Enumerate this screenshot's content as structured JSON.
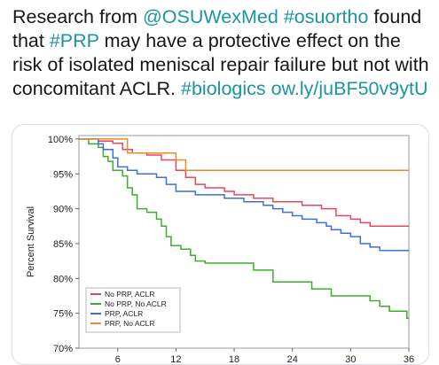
{
  "tweet": {
    "segments": [
      {
        "text": "Research from ",
        "type": "text"
      },
      {
        "text": "@OSUWexMed",
        "type": "mention"
      },
      {
        "text": " ",
        "type": "text"
      },
      {
        "text": "#osuortho",
        "type": "hashtag"
      },
      {
        "text": " found that ",
        "type": "text"
      },
      {
        "text": "#PRP",
        "type": "hashtag"
      },
      {
        "text": " may have a protective effect on the risk of isolated meniscal repair failure but not with concomitant ACLR. ",
        "type": "text"
      },
      {
        "text": "#biologics",
        "type": "hashtag"
      },
      {
        "text": " ",
        "type": "text"
      },
      {
        "text": "ow.ly/juBF50v9ytU",
        "type": "link"
      }
    ],
    "link_color": "#1b95a2"
  },
  "chart_data": {
    "type": "line",
    "title": "",
    "xlabel": "",
    "ylabel": "Percent Survival",
    "xlim": [
      2,
      36
    ],
    "ylim": [
      70,
      100.5
    ],
    "x_ticks": [
      6,
      12,
      18,
      24,
      30,
      36
    ],
    "y_ticks": [
      "70%",
      "75%",
      "80%",
      "85%",
      "90%",
      "95%",
      "100%"
    ],
    "y_tick_values": [
      70,
      75,
      80,
      85,
      90,
      95,
      100
    ],
    "grid": false,
    "legend_placement": "bottom-left",
    "series": [
      {
        "name": "No PRP, ACLR",
        "color": "#e8475a",
        "points": [
          [
            2,
            100
          ],
          [
            4,
            100
          ],
          [
            4,
            99.7
          ],
          [
            5.5,
            99.7
          ],
          [
            5.5,
            99.4
          ],
          [
            6.5,
            99.4
          ],
          [
            6.5,
            98.5
          ],
          [
            7.5,
            98.5
          ],
          [
            7.5,
            98
          ],
          [
            9,
            98
          ],
          [
            9,
            97.7
          ],
          [
            10.5,
            97.7
          ],
          [
            10.5,
            97
          ],
          [
            12,
            97
          ],
          [
            12,
            95.5
          ],
          [
            13,
            95.5
          ],
          [
            13,
            94.5
          ],
          [
            14,
            94.5
          ],
          [
            14,
            93.5
          ],
          [
            15,
            93.5
          ],
          [
            15,
            93
          ],
          [
            17,
            93
          ],
          [
            17,
            92.5
          ],
          [
            18,
            92.5
          ],
          [
            18,
            92
          ],
          [
            20,
            92
          ],
          [
            20,
            91.5
          ],
          [
            22,
            91.5
          ],
          [
            22,
            91
          ],
          [
            25,
            91
          ],
          [
            25,
            90.5
          ],
          [
            27,
            90.5
          ],
          [
            27,
            90
          ],
          [
            28.5,
            90
          ],
          [
            28.5,
            89
          ],
          [
            30,
            89
          ],
          [
            30,
            88.5
          ],
          [
            31,
            88.5
          ],
          [
            31,
            88
          ],
          [
            32,
            88
          ],
          [
            32,
            87.5
          ],
          [
            36,
            87.5
          ]
        ]
      },
      {
        "name": "No PRP, No ACLR",
        "color": "#3dae2b",
        "points": [
          [
            2,
            100
          ],
          [
            3,
            100
          ],
          [
            3,
            99.3
          ],
          [
            4,
            99.3
          ],
          [
            4,
            98.8
          ],
          [
            4.5,
            98.8
          ],
          [
            4.5,
            97.5
          ],
          [
            5,
            97.5
          ],
          [
            5,
            96.8
          ],
          [
            5.5,
            96.8
          ],
          [
            5.5,
            95.5
          ],
          [
            6.5,
            95.5
          ],
          [
            6.5,
            94.7
          ],
          [
            7,
            94.7
          ],
          [
            7,
            93
          ],
          [
            7.5,
            93
          ],
          [
            7.5,
            92
          ],
          [
            8,
            92
          ],
          [
            8,
            90
          ],
          [
            9,
            90
          ],
          [
            9,
            89.5
          ],
          [
            10,
            89.5
          ],
          [
            10,
            88.5
          ],
          [
            10.5,
            88.5
          ],
          [
            10.5,
            87.5
          ],
          [
            11,
            87.5
          ],
          [
            11,
            86
          ],
          [
            11.5,
            86
          ],
          [
            11.5,
            84.7
          ],
          [
            12.5,
            84.7
          ],
          [
            12.5,
            84.2
          ],
          [
            13.5,
            84.2
          ],
          [
            13.5,
            83.3
          ],
          [
            14,
            83.3
          ],
          [
            14,
            82.5
          ],
          [
            15,
            82.5
          ],
          [
            15,
            82.2
          ],
          [
            20,
            82.2
          ],
          [
            20,
            81.2
          ],
          [
            22,
            81.2
          ],
          [
            22,
            79.5
          ],
          [
            26,
            79.5
          ],
          [
            26,
            78.5
          ],
          [
            28,
            78.5
          ],
          [
            28,
            77.5
          ],
          [
            32,
            77.5
          ],
          [
            32,
            76.8
          ],
          [
            33,
            76.8
          ],
          [
            33,
            76
          ],
          [
            34,
            76
          ],
          [
            34,
            75.3
          ],
          [
            35.8,
            75.3
          ],
          [
            35.8,
            74.3
          ],
          [
            36,
            74.3
          ]
        ]
      },
      {
        "name": "PRP, ACLR",
        "color": "#3d6fd9",
        "points": [
          [
            2,
            100
          ],
          [
            4,
            100
          ],
          [
            4,
            99.3
          ],
          [
            4.5,
            99.3
          ],
          [
            4.5,
            98.5
          ],
          [
            5.5,
            98.5
          ],
          [
            5.5,
            97.3
          ],
          [
            6,
            97.3
          ],
          [
            6,
            96
          ],
          [
            7,
            96
          ],
          [
            7,
            95.5
          ],
          [
            8,
            95.5
          ],
          [
            8,
            95
          ],
          [
            10,
            95
          ],
          [
            10,
            94.5
          ],
          [
            11,
            94.5
          ],
          [
            11,
            93.5
          ],
          [
            12,
            93.5
          ],
          [
            12,
            92.5
          ],
          [
            14,
            92.5
          ],
          [
            14,
            92
          ],
          [
            17,
            92
          ],
          [
            17,
            91.5
          ],
          [
            19,
            91.5
          ],
          [
            19,
            91
          ],
          [
            21,
            91
          ],
          [
            21,
            90.5
          ],
          [
            22,
            90.5
          ],
          [
            22,
            90
          ],
          [
            23,
            90
          ],
          [
            23,
            89.5
          ],
          [
            24,
            89.5
          ],
          [
            24,
            89
          ],
          [
            25,
            89
          ],
          [
            25,
            88.5
          ],
          [
            26.5,
            88.5
          ],
          [
            26.5,
            88
          ],
          [
            27.5,
            88
          ],
          [
            27.5,
            87.5
          ],
          [
            28,
            87.5
          ],
          [
            28,
            87
          ],
          [
            29,
            87
          ],
          [
            29,
            86.5
          ],
          [
            30,
            86.5
          ],
          [
            30,
            86
          ],
          [
            31,
            86
          ],
          [
            31,
            85
          ],
          [
            32,
            85
          ],
          [
            32,
            84.5
          ],
          [
            33,
            84.5
          ],
          [
            33,
            84
          ],
          [
            36,
            84
          ]
        ]
      },
      {
        "name": "PRP, No ACLR",
        "color": "#ef8a2a",
        "points": [
          [
            2,
            100
          ],
          [
            7,
            100
          ],
          [
            7,
            98
          ],
          [
            12,
            98
          ],
          [
            12,
            97
          ],
          [
            13,
            97
          ],
          [
            13,
            95.5
          ],
          [
            36,
            95.5
          ]
        ]
      }
    ]
  }
}
